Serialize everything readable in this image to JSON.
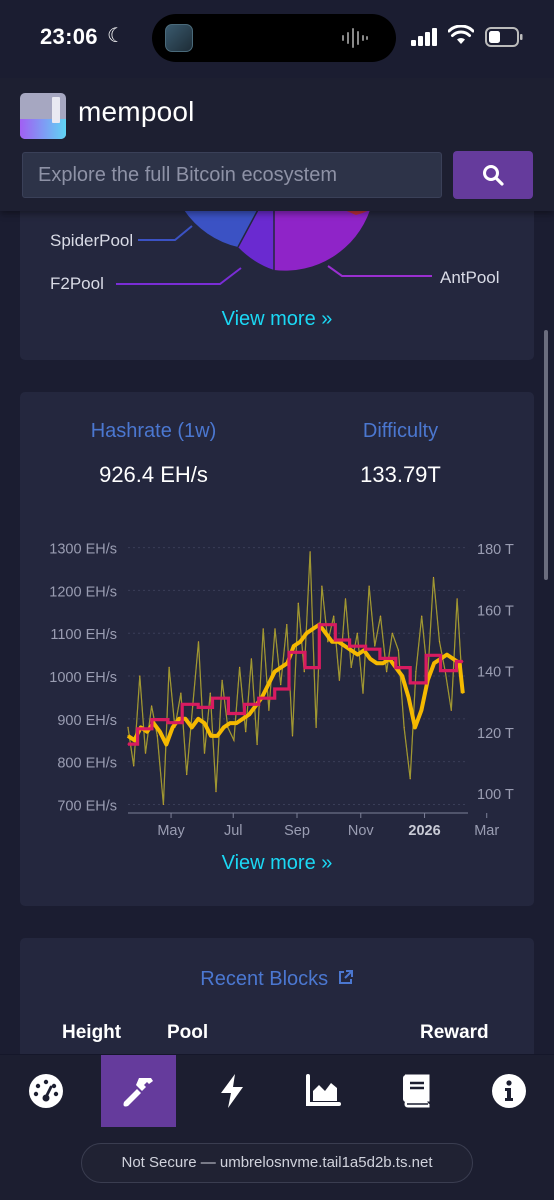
{
  "status_bar": {
    "time": "23:06"
  },
  "header": {
    "brand": "mempool",
    "search_placeholder": "Explore the full Bitcoin ecosystem"
  },
  "mining_pools": {
    "labels": [
      "SpiderPool",
      "F2Pool",
      "AntPool"
    ],
    "view_more": "View more »"
  },
  "hashrate": {
    "hashrate_title": "Hashrate (1w)",
    "hashrate_value": "926.4 EH/s",
    "difficulty_title": "Difficulty",
    "difficulty_value": "133.79T",
    "view_more": "View more »"
  },
  "chart_data": {
    "type": "line",
    "x_tick_labels": [
      "May",
      "Jul",
      "Sep",
      "Nov",
      "2026",
      "Mar"
    ],
    "y_left_ticks": [
      "1300 EH/s",
      "1200 EH/s",
      "1100 EH/s",
      "1000 EH/s",
      "900 EH/s",
      "800 EH/s",
      "700 EH/s"
    ],
    "y_right_ticks": [
      "180 T",
      "160 T",
      "140 T",
      "120 T",
      "100 T"
    ],
    "ylim_left": [
      680,
      1320
    ],
    "ylim_right": [
      93.5,
      183
    ],
    "x_months": [
      3.7,
      14.3
    ],
    "grid": true,
    "series": [
      {
        "color": "#d4a32a",
        "x": [
          3.7,
          3.88,
          4.07,
          4.25,
          4.44,
          4.62,
          4.81,
          4.99,
          5.17,
          5.36,
          5.54,
          5.73,
          5.91,
          6.1,
          6.28,
          6.46,
          6.65,
          6.83,
          7.02,
          7.2,
          7.39,
          7.57,
          7.75,
          7.94,
          8.12,
          8.31,
          8.49,
          8.68,
          8.86,
          9.04,
          9.23,
          9.41,
          9.6,
          9.78,
          9.97,
          10.15,
          10.33,
          10.52,
          10.7,
          10.89,
          11.07,
          11.26,
          11.44,
          11.62,
          11.81,
          11.99,
          12.18,
          12.36,
          12.55,
          12.73,
          12.91,
          13.1,
          13.28,
          13.47,
          13.65,
          13.84,
          14.02,
          14.2
        ],
        "values": [
          880,
          790,
          1000,
          820,
          930,
          860,
          700,
          1020,
          880,
          960,
          770,
          930,
          1080,
          820,
          960,
          730,
          990,
          880,
          850,
          1020,
          870,
          1040,
          840,
          1110,
          920,
          1110,
          980,
          1120,
          860,
          1170,
          1010,
          1290,
          880,
          1210,
          1080,
          1140,
          990,
          1180,
          1020,
          1100,
          960,
          1210,
          1070,
          1140,
          1010,
          1100,
          1060,
          880,
          760,
          1010,
          1140,
          1000,
          1230,
          1080,
          1010,
          920,
          1180,
          960
        ]
      },
      {
        "color": "#f5b900",
        "x": [
          3.7,
          3.9,
          4.1,
          4.3,
          4.5,
          4.7,
          4.9,
          5.1,
          5.3,
          5.5,
          5.7,
          5.9,
          6.1,
          6.3,
          6.5,
          6.7,
          6.9,
          7.1,
          7.3,
          7.5,
          7.7,
          7.9,
          8.1,
          8.3,
          8.5,
          8.7,
          8.9,
          9.1,
          9.3,
          9.5,
          9.7,
          9.9,
          10.1,
          10.3,
          10.5,
          10.7,
          10.9,
          11.1,
          11.3,
          11.5,
          11.7,
          11.9,
          12.1,
          12.3,
          12.5,
          12.7,
          12.9,
          13.1,
          13.3,
          13.5,
          13.7,
          13.9,
          14.1,
          14.2
        ],
        "values": [
          860,
          850,
          880,
          870,
          890,
          870,
          840,
          880,
          900,
          900,
          880,
          900,
          890,
          860,
          860,
          880,
          890,
          890,
          900,
          910,
          930,
          950,
          980,
          1010,
          1020,
          1030,
          1070,
          1080,
          1100,
          1110,
          1120,
          1100,
          1080,
          1080,
          1070,
          1060,
          1050,
          1060,
          1040,
          1030,
          1030,
          1040,
          1020,
          1000,
          950,
          880,
          920,
          990,
          1030,
          1040,
          1050,
          1040,
          1030,
          960
        ]
      },
      {
        "color": "#d81b60",
        "x": [
          3.7,
          4.0,
          4.0,
          4.45,
          4.45,
          4.95,
          4.95,
          5.4,
          5.4,
          5.9,
          5.9,
          6.35,
          6.35,
          6.85,
          6.85,
          7.35,
          7.35,
          7.8,
          7.8,
          8.3,
          8.3,
          8.75,
          8.75,
          9.25,
          9.25,
          9.7,
          9.7,
          10.2,
          10.2,
          10.65,
          10.65,
          11.15,
          11.15,
          11.6,
          11.6,
          12.1,
          12.1,
          12.55,
          12.55,
          13.05,
          13.05,
          13.5,
          13.5,
          14.0,
          14.0,
          14.2
        ],
        "values": [
          116,
          116,
          121,
          121,
          124,
          124,
          123,
          123,
          129,
          129,
          128,
          128,
          131,
          131,
          126,
          126,
          129,
          129,
          131,
          131,
          134,
          134,
          146,
          146,
          141,
          141,
          155,
          155,
          150,
          150,
          148,
          148,
          147,
          147,
          144,
          144,
          141,
          141,
          136,
          136,
          145,
          145,
          140,
          140,
          143,
          143
        ]
      }
    ]
  },
  "recent_blocks": {
    "title": "Recent Blocks",
    "headers": {
      "height": "Height",
      "pool": "Pool",
      "reward": "Reward"
    }
  },
  "browser": {
    "url_text": "Not Secure — umbrelosnvme.tail1a5d2b.ts.net"
  }
}
